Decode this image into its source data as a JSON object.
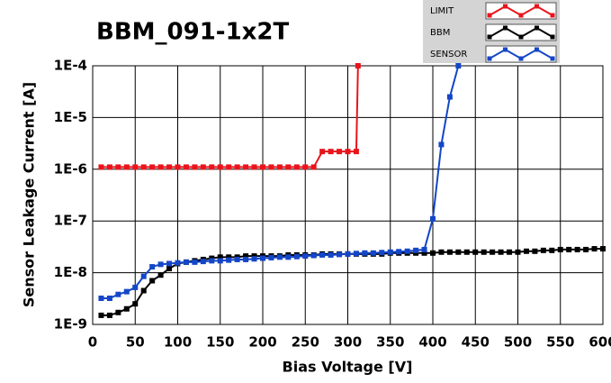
{
  "chart_data": {
    "type": "line",
    "title": "BBM_091-1x2T",
    "xlabel": "Bias Voltage [V]",
    "ylabel": "Sensor Leakage Current [A]",
    "xlim": [
      0,
      600
    ],
    "xticks": [
      0,
      50,
      100,
      150,
      200,
      250,
      300,
      350,
      400,
      450,
      500,
      550,
      600
    ],
    "ylim": [
      1e-09,
      0.0001
    ],
    "ylog": true,
    "yticks": [
      {
        "value": 1e-09,
        "label": "1E-9"
      },
      {
        "value": 1e-08,
        "label": "1E-8"
      },
      {
        "value": 1e-07,
        "label": "1E-7"
      },
      {
        "value": 1e-06,
        "label": "1E-6"
      },
      {
        "value": 1e-05,
        "label": "1E-5"
      },
      {
        "value": 0.0001,
        "label": "1E-4"
      }
    ],
    "grid": true,
    "legend": "top-right",
    "series": [
      {
        "name": "LIMIT",
        "color": "#e8141c",
        "x": [
          10,
          20,
          30,
          40,
          50,
          60,
          70,
          80,
          90,
          100,
          110,
          120,
          130,
          140,
          150,
          160,
          170,
          180,
          190,
          200,
          210,
          220,
          230,
          240,
          250,
          260,
          270,
          280,
          290,
          300,
          310,
          312
        ],
        "values": [
          1.1e-06,
          1.1e-06,
          1.1e-06,
          1.1e-06,
          1.1e-06,
          1.1e-06,
          1.1e-06,
          1.1e-06,
          1.1e-06,
          1.1e-06,
          1.1e-06,
          1.1e-06,
          1.1e-06,
          1.1e-06,
          1.1e-06,
          1.1e-06,
          1.1e-06,
          1.1e-06,
          1.1e-06,
          1.1e-06,
          1.1e-06,
          1.1e-06,
          1.1e-06,
          1.1e-06,
          1.1e-06,
          1.1e-06,
          2.2e-06,
          2.2e-06,
          2.2e-06,
          2.2e-06,
          2.2e-06,
          0.0001
        ]
      },
      {
        "name": "BBM",
        "color": "#000000",
        "x": [
          10,
          20,
          30,
          40,
          50,
          60,
          70,
          80,
          90,
          100,
          110,
          120,
          130,
          140,
          150,
          160,
          170,
          180,
          190,
          200,
          210,
          220,
          230,
          240,
          250,
          260,
          270,
          280,
          290,
          300,
          310,
          320,
          330,
          340,
          350,
          360,
          370,
          380,
          390,
          400,
          410,
          420,
          430,
          440,
          450,
          460,
          470,
          480,
          490,
          500,
          510,
          520,
          530,
          540,
          550,
          560,
          570,
          580,
          590,
          600
        ],
        "values": [
          1.5e-09,
          1.5e-09,
          1.7e-09,
          2e-09,
          2.5e-09,
          4.5e-09,
          7e-09,
          9e-09,
          1.2e-08,
          1.5e-08,
          1.6e-08,
          1.7e-08,
          1.8e-08,
          1.9e-08,
          2e-08,
          2e-08,
          2e-08,
          2.1e-08,
          2.1e-08,
          2.1e-08,
          2.1e-08,
          2.1e-08,
          2.2e-08,
          2.2e-08,
          2.2e-08,
          2.2e-08,
          2.3e-08,
          2.3e-08,
          2.3e-08,
          2.3e-08,
          2.3e-08,
          2.3e-08,
          2.3e-08,
          2.3e-08,
          2.4e-08,
          2.4e-08,
          2.4e-08,
          2.4e-08,
          2.4e-08,
          2.4e-08,
          2.5e-08,
          2.5e-08,
          2.5e-08,
          2.5e-08,
          2.5e-08,
          2.5e-08,
          2.5e-08,
          2.5e-08,
          2.5e-08,
          2.5e-08,
          2.6e-08,
          2.6e-08,
          2.7e-08,
          2.7e-08,
          2.8e-08,
          2.8e-08,
          2.8e-08,
          2.8e-08,
          2.9e-08,
          2.9e-08
        ]
      },
      {
        "name": "SENSOR",
        "color": "#1446c8",
        "x": [
          10,
          20,
          30,
          40,
          50,
          60,
          70,
          80,
          90,
          100,
          110,
          120,
          130,
          140,
          150,
          160,
          170,
          180,
          190,
          200,
          210,
          220,
          230,
          240,
          250,
          260,
          270,
          280,
          290,
          300,
          310,
          320,
          330,
          340,
          350,
          360,
          370,
          380,
          390,
          400,
          410,
          420,
          430
        ],
        "values": [
          3.2e-09,
          3.2e-09,
          3.8e-09,
          4.3e-09,
          5.2e-09,
          8.5e-09,
          1.3e-08,
          1.45e-08,
          1.5e-08,
          1.55e-08,
          1.6e-08,
          1.6e-08,
          1.65e-08,
          1.7e-08,
          1.7e-08,
          1.75e-08,
          1.8e-08,
          1.8e-08,
          1.85e-08,
          1.9e-08,
          1.95e-08,
          2e-08,
          2e-08,
          2.05e-08,
          2.1e-08,
          2.15e-08,
          2.2e-08,
          2.2e-08,
          2.25e-08,
          2.3e-08,
          2.35e-08,
          2.4e-08,
          2.4e-08,
          2.45e-08,
          2.5e-08,
          2.55e-08,
          2.6e-08,
          2.7e-08,
          2.8e-08,
          1.1e-07,
          3e-06,
          2.5e-05,
          0.0001
        ]
      }
    ]
  }
}
